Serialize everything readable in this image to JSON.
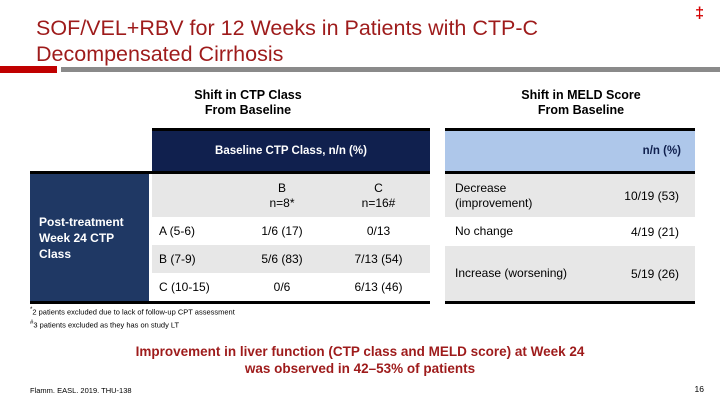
{
  "slide": {
    "title_line1": "SOF/VEL+RBV for 12 Weeks in Patients with CTP-C",
    "title_line2": "Decompensated Cirrhosis",
    "corner_mark": "‡",
    "conclusion_line1": "Improvement in liver function (CTP class and MELD score) at Week 24",
    "conclusion_line2": "was observed in 42–53% of patients",
    "citation": "Flamm. EASL. 2019. THU-138",
    "page_number": "16",
    "footnotes": [
      {
        "marker": "*",
        "text": "2 patients excluded due to lack of follow-up CPT assessment"
      },
      {
        "marker": "#",
        "text": "3 patients excluded as they has on study LT"
      }
    ]
  },
  "ctp_table": {
    "section_title_line1": "Shift in CTP Class",
    "section_title_line2": "From Baseline",
    "header": "Baseline CTP Class, n/n (%)",
    "row_group_label": "Post-treatment Week 24 CTP Class",
    "col_b_line1": "B",
    "col_b_line2": "n=8*",
    "col_c_line1": "C",
    "col_c_line2": "n=16#",
    "rows": [
      {
        "label": "A (5-6)",
        "b": "1/6 (17)",
        "c": "0/13"
      },
      {
        "label": "B (7-9)",
        "b": "5/6 (83)",
        "c": "7/13 (54)"
      },
      {
        "label": "C (10-15)",
        "b": "0/6",
        "c": "6/13 (46)"
      }
    ]
  },
  "meld_table": {
    "section_title_line1": "Shift in MELD Score",
    "section_title_line2": "From Baseline",
    "header": "n/n (%)",
    "rows": [
      {
        "label": "Decrease (improvement)",
        "value": "10/19 (53)"
      },
      {
        "label": "No change",
        "value": "4/19 (21)"
      },
      {
        "label": "Increase (worsening)",
        "value": "5/19 (26)"
      }
    ]
  },
  "colors": {
    "title_red": "#9e1b1b",
    "accent_red": "#c00000",
    "navy_header": "#10204e",
    "navy_box": "#1f3864",
    "light_blue_header": "#aec7ea",
    "row_gray": "#e7e7e7",
    "rule_gray": "#8a8a8a"
  }
}
